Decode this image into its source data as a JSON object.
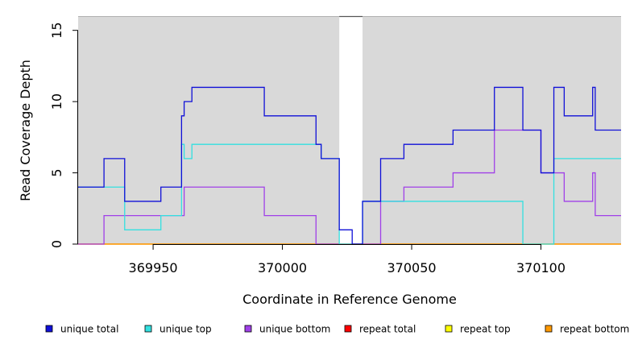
{
  "chart_data": {
    "type": "line",
    "title": "",
    "xlabel": "Coordinate in Reference Genome",
    "ylabel": "Read Coverage Depth",
    "xlim": [
      369921,
      370131
    ],
    "ylim": [
      0,
      16
    ],
    "xticks": [
      369950,
      370000,
      370050,
      370100
    ],
    "yticks": [
      0,
      5,
      10,
      15
    ],
    "grid": false,
    "legend_position": "bottom",
    "background_color": "#d9d9d9",
    "gap_region": [
      370022,
      370031
    ],
    "series": [
      {
        "name": "unique total",
        "color": "#1010d8",
        "x": [
          369921,
          369931,
          369931,
          369939,
          369939,
          369953,
          369953,
          369961,
          369961,
          369962,
          369962,
          369965,
          369965,
          369993,
          369993,
          370013,
          370013,
          370015,
          370015,
          370022,
          370022,
          370027,
          370027,
          370031,
          370031,
          370038,
          370038,
          370047,
          370047,
          370066,
          370066,
          370082,
          370082,
          370093,
          370093,
          370100,
          370100,
          370105,
          370105,
          370109,
          370109,
          370120,
          370120,
          370121,
          370121,
          370131
        ],
        "y": [
          4,
          4,
          6,
          6,
          3,
          3,
          4,
          4,
          9,
          9,
          10,
          10,
          11,
          11,
          9,
          9,
          7,
          7,
          6,
          6,
          1,
          1,
          0,
          0,
          3,
          3,
          6,
          6,
          7,
          7,
          8,
          8,
          11,
          11,
          8,
          8,
          5,
          5,
          11,
          11,
          9,
          9,
          11,
          11,
          8,
          8
        ]
      },
      {
        "name": "unique top",
        "color": "#33e0e0",
        "x": [
          369921,
          369939,
          369939,
          369953,
          369953,
          369961,
          369961,
          369962,
          369962,
          369965,
          369965,
          370015,
          370015,
          370022,
          370022,
          370031,
          370031,
          370093,
          370093,
          370105,
          370105,
          370131
        ],
        "y": [
          4,
          4,
          1,
          1,
          2,
          2,
          7,
          7,
          6,
          6,
          7,
          7,
          6,
          6,
          0,
          0,
          3,
          3,
          0,
          0,
          6,
          6
        ]
      },
      {
        "name": "unique bottom",
        "color": "#a040e8",
        "x": [
          369921,
          369931,
          369931,
          369962,
          369962,
          369993,
          369993,
          370013,
          370013,
          370038,
          370038,
          370047,
          370047,
          370066,
          370066,
          370082,
          370082,
          370100,
          370100,
          370109,
          370109,
          370120,
          370120,
          370121,
          370121,
          370131
        ],
        "y": [
          0,
          0,
          2,
          2,
          4,
          4,
          2,
          2,
          0,
          0,
          3,
          3,
          4,
          4,
          5,
          5,
          8,
          8,
          5,
          5,
          3,
          3,
          5,
          5,
          2,
          2
        ]
      },
      {
        "name": "repeat total",
        "color": "#ff0000",
        "x": [
          369921,
          370131
        ],
        "y": [
          0,
          0
        ]
      },
      {
        "name": "repeat top",
        "color": "#ffff00",
        "x": [
          369921,
          370131
        ],
        "y": [
          0,
          0
        ]
      },
      {
        "name": "repeat bottom",
        "color": "#ff9900",
        "x": [
          369921,
          370131
        ],
        "y": [
          0,
          0
        ]
      }
    ]
  }
}
